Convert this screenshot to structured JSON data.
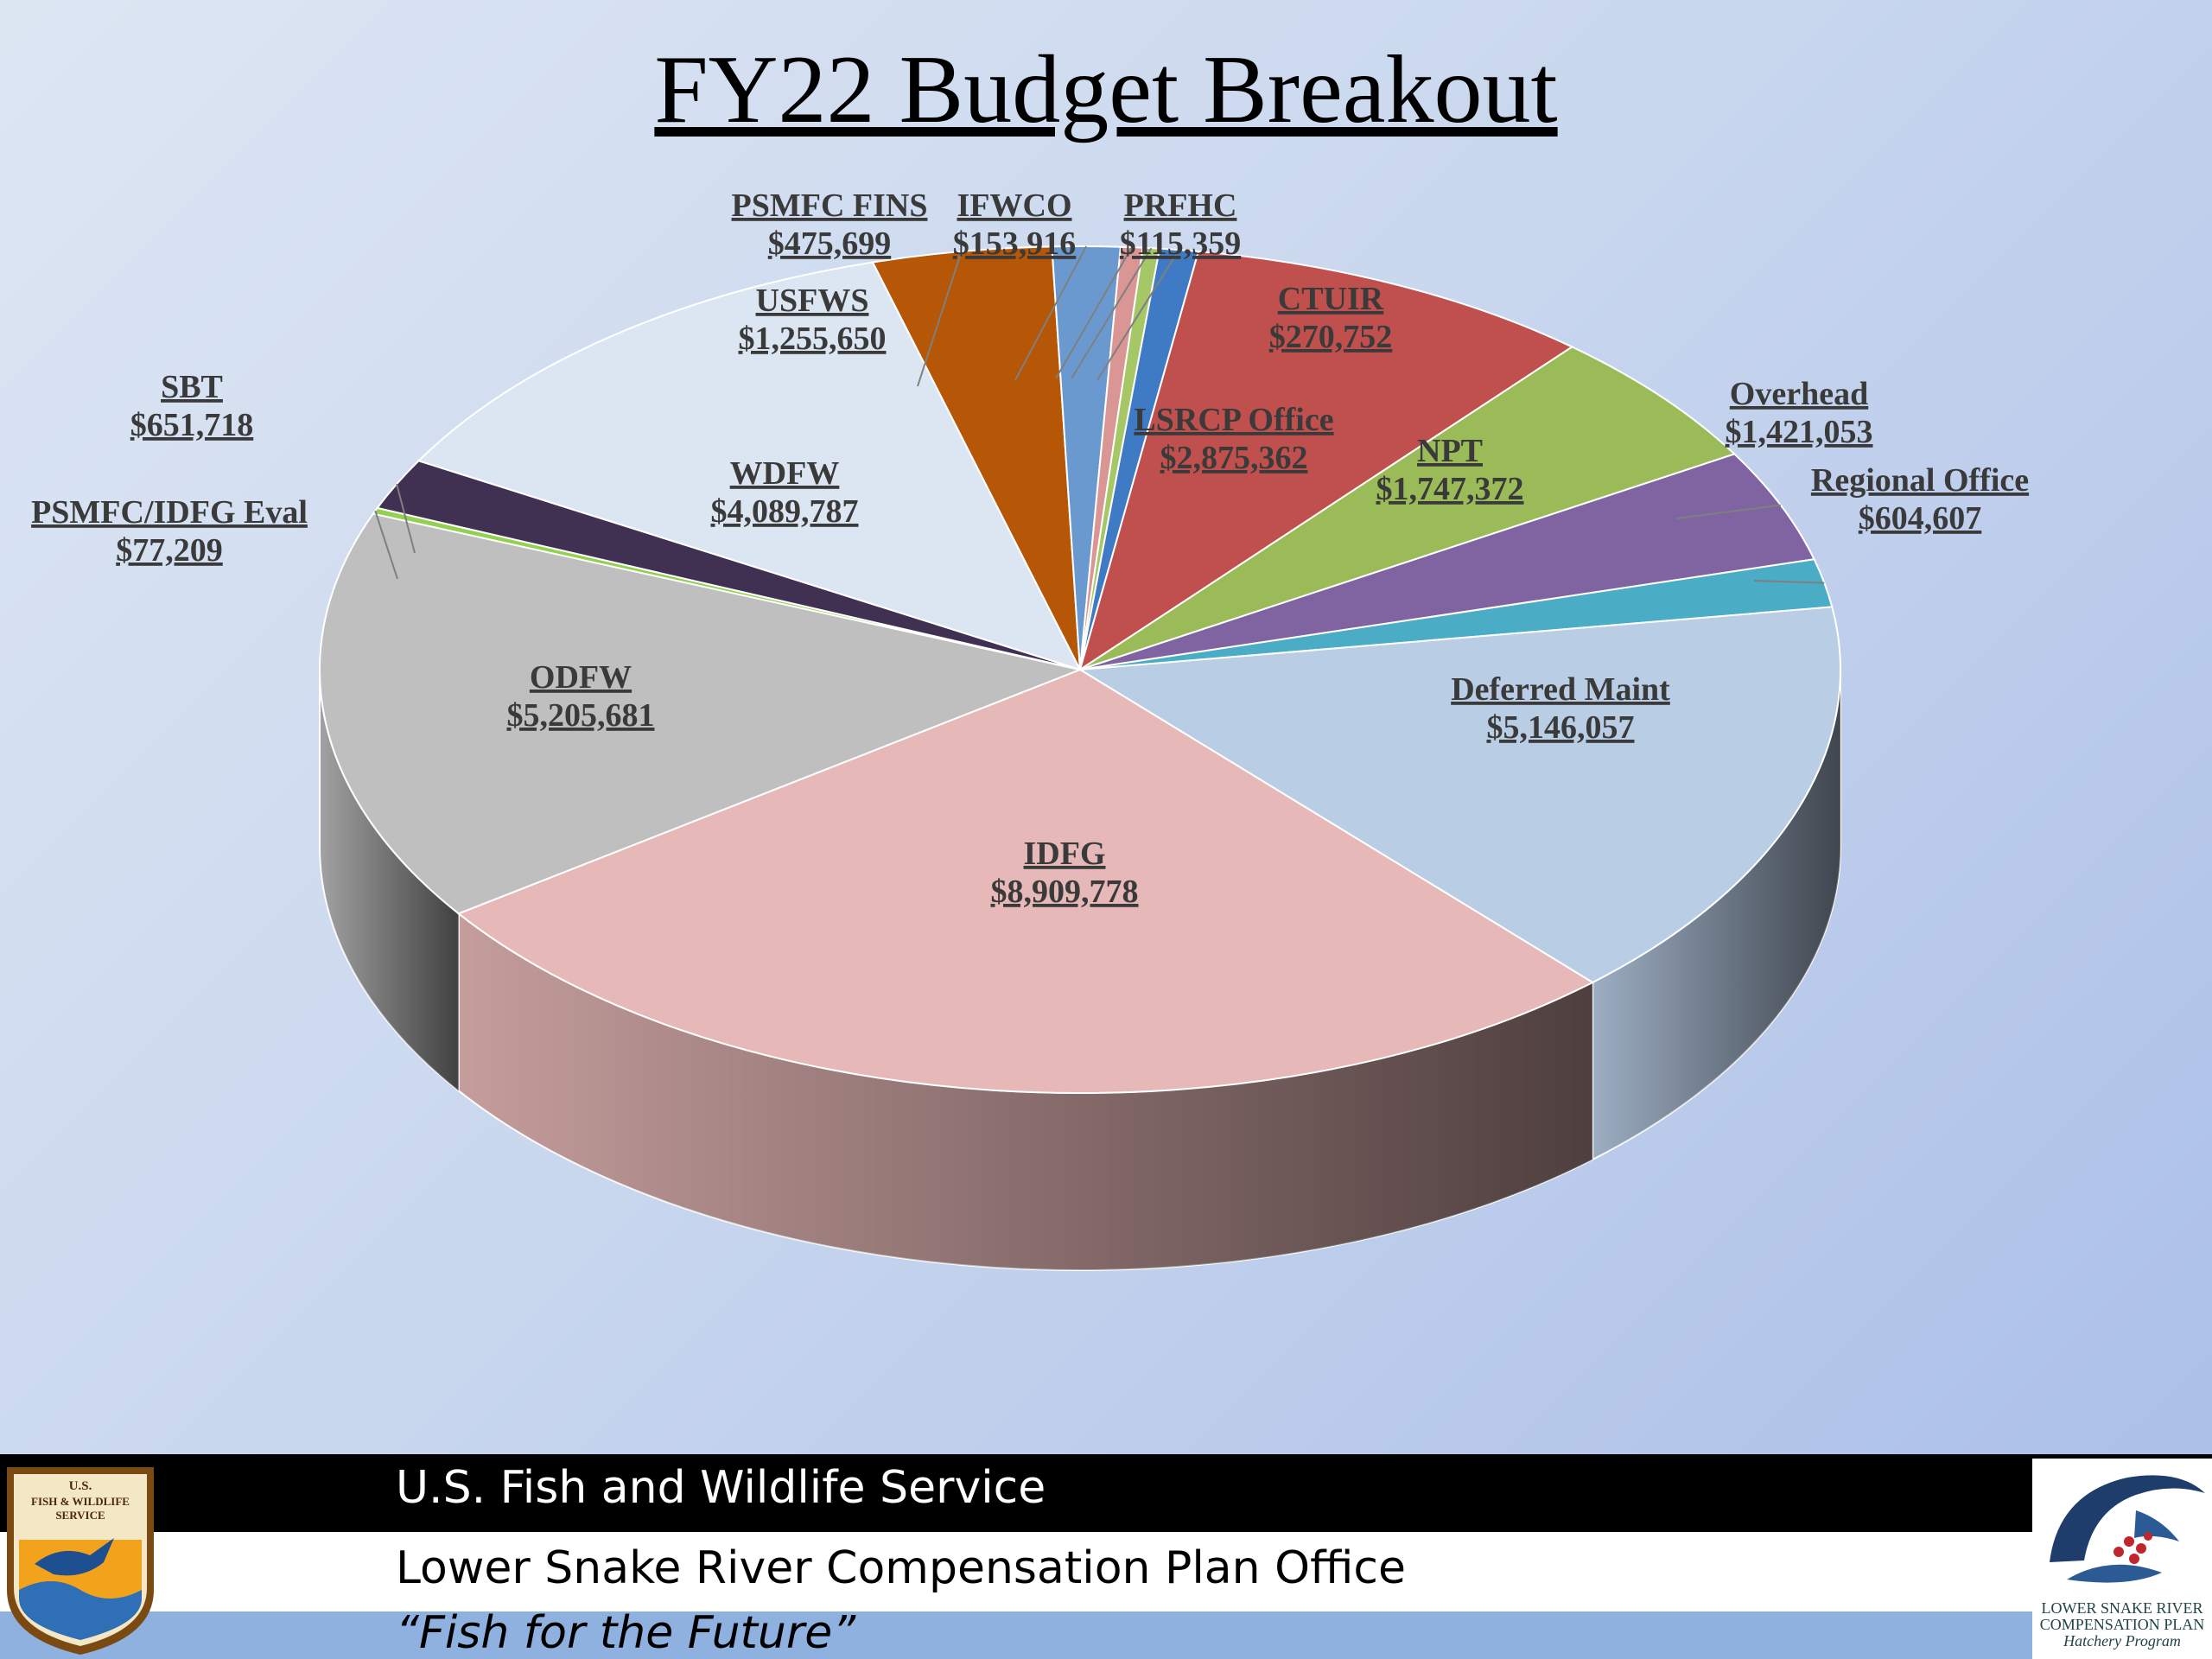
{
  "chart_data": {
    "type": "pie",
    "title": "FY22 Budget Breakout",
    "slices": [
      {
        "label": "CTUIR",
        "value_label": "$270,752",
        "value": 270752,
        "color": "#3f7bc4"
      },
      {
        "label": "LSRCP Office",
        "value_label": "$2,875,362",
        "value": 2875362,
        "color": "#c0504d"
      },
      {
        "label": "NPT",
        "value_label": "$1,747,372",
        "value": 1747372,
        "color": "#9bbb59"
      },
      {
        "label": "Overhead",
        "value_label": "$1,421,053",
        "value": 1421053,
        "color": "#8064a2"
      },
      {
        "label": "Regional Office",
        "value_label": "$604,607",
        "value": 604607,
        "color": "#4bacc6"
      },
      {
        "label": "Deferred Maint",
        "value_label": "$5,146,057",
        "value": 5146057,
        "color": "#b9cde5"
      },
      {
        "label": "IDFG",
        "value_label": "$8,909,778",
        "value": 8909778,
        "color": "#e6b9b8"
      },
      {
        "label": "ODFW",
        "value_label": "$5,205,681",
        "value": 5205681,
        "color": "#bfbfbf"
      },
      {
        "label": "PSMFC/IDFG Eval",
        "value_label": "$77,209",
        "value": 77209,
        "color": "#92d050"
      },
      {
        "label": "SBT",
        "value_label": "$651,718",
        "value": 651718,
        "color": "#403152"
      },
      {
        "label": "WDFW",
        "value_label": "$4,089,787",
        "value": 4089787,
        "color": "#dce6f2"
      },
      {
        "label": "USFWS",
        "value_label": "$1,255,650",
        "value": 1255650,
        "color": "#b65708"
      },
      {
        "label": "PSMFC FINS",
        "value_label": "$475,699",
        "value": 475699,
        "color": "#6a99cf"
      },
      {
        "label": "IFWCO",
        "value_label": "$153,916",
        "value": 153916,
        "color": "#d99694"
      },
      {
        "label": "PRFHC",
        "value_label": "$115,359",
        "value": 115359,
        "color": "#a5c765"
      }
    ]
  },
  "footer": {
    "agency": "U.S. Fish and Wildlife Service",
    "office": "Lower Snake River Compensation Plan Office",
    "motto": "“Fish for the Future”"
  },
  "logos": {
    "fws_text_1": "U.S.",
    "fws_text_2": "FISH & WILDLIFE",
    "fws_text_3": "SERVICE",
    "lsrcp_line_1": "LOWER SNAKE RIVER",
    "lsrcp_line_2": "COMPENSATION PLAN",
    "lsrcp_line_3": "Hatchery Program"
  }
}
